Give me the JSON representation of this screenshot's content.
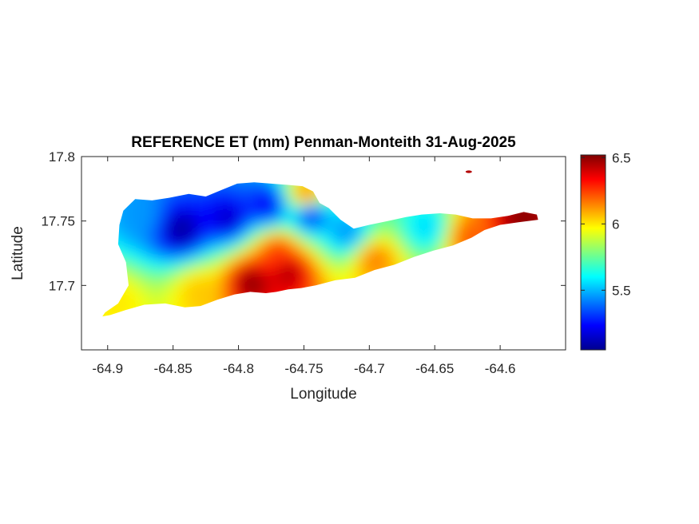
{
  "chart_data": {
    "type": "heatmap",
    "title": "REFERENCE ET (mm) Penman-Monteith 31-Aug-2025",
    "xlabel": "Longitude",
    "ylabel": "Latitude",
    "xlim": [
      -64.92,
      -64.55
    ],
    "ylim": [
      17.65,
      17.8
    ],
    "xticks": [
      -64.9,
      -64.85,
      -64.8,
      -64.75,
      -64.7,
      -64.65,
      -64.6
    ],
    "xtick_labels": [
      "-64.9",
      "-64.85",
      "-64.8",
      "-64.75",
      "-64.7",
      "-64.65",
      "-64.6"
    ],
    "yticks": [
      17.7,
      17.75,
      17.8
    ],
    "ytick_labels": [
      "17.7",
      "17.75",
      "17.8"
    ],
    "colorbar": {
      "colormap": "jet",
      "range": [
        5.05,
        6.52
      ],
      "ticks": [
        5.5,
        6,
        6.5
      ],
      "tick_labels": [
        "5.5",
        "6",
        "6.5"
      ]
    },
    "island_outline": [
      [
        -64.902,
        17.679
      ],
      [
        -64.892,
        17.686
      ],
      [
        -64.884,
        17.7
      ],
      [
        -64.886,
        17.718
      ],
      [
        -64.892,
        17.732
      ],
      [
        -64.891,
        17.747
      ],
      [
        -64.888,
        17.758
      ],
      [
        -64.879,
        17.767
      ],
      [
        -64.866,
        17.766
      ],
      [
        -64.853,
        17.768
      ],
      [
        -64.838,
        17.771
      ],
      [
        -64.825,
        17.769
      ],
      [
        -64.813,
        17.774
      ],
      [
        -64.801,
        17.779
      ],
      [
        -64.788,
        17.78
      ],
      [
        -64.775,
        17.779
      ],
      [
        -64.762,
        17.778
      ],
      [
        -64.751,
        17.777
      ],
      [
        -64.743,
        17.773
      ],
      [
        -64.738,
        17.764
      ],
      [
        -64.731,
        17.76
      ],
      [
        -64.722,
        17.751
      ],
      [
        -64.712,
        17.744
      ],
      [
        -64.7,
        17.747
      ],
      [
        -64.686,
        17.75
      ],
      [
        -64.672,
        17.753
      ],
      [
        -64.66,
        17.755
      ],
      [
        -64.646,
        17.756
      ],
      [
        -64.634,
        17.755
      ],
      [
        -64.621,
        17.752
      ],
      [
        -64.607,
        17.752
      ],
      [
        -64.594,
        17.754
      ],
      [
        -64.582,
        17.757
      ],
      [
        -64.572,
        17.755
      ],
      [
        -64.571,
        17.751
      ],
      [
        -64.586,
        17.749
      ],
      [
        -64.6,
        17.747
      ],
      [
        -64.612,
        17.743
      ],
      [
        -64.622,
        17.737
      ],
      [
        -64.636,
        17.731
      ],
      [
        -64.651,
        17.727
      ],
      [
        -64.666,
        17.722
      ],
      [
        -64.681,
        17.716
      ],
      [
        -64.696,
        17.712
      ],
      [
        -64.711,
        17.706
      ],
      [
        -64.726,
        17.704
      ],
      [
        -64.741,
        17.7
      ],
      [
        -64.752,
        17.698
      ],
      [
        -64.762,
        17.697
      ],
      [
        -64.771,
        17.695
      ],
      [
        -64.779,
        17.694
      ],
      [
        -64.791,
        17.695
      ],
      [
        -64.803,
        17.693
      ],
      [
        -64.816,
        17.689
      ],
      [
        -64.829,
        17.684
      ],
      [
        -64.841,
        17.683
      ],
      [
        -64.856,
        17.686
      ],
      [
        -64.872,
        17.685
      ],
      [
        -64.886,
        17.681
      ],
      [
        -64.898,
        17.677
      ],
      [
        -64.904,
        17.676
      ]
    ],
    "et_field_mm": {
      "background": 5.85,
      "centers": [
        {
          "lon": -64.844,
          "lat": 17.743,
          "value": 5.08
        },
        {
          "lon": -64.808,
          "lat": 17.752,
          "value": 5.15
        },
        {
          "lon": -64.778,
          "lat": 17.762,
          "value": 5.22
        },
        {
          "lon": -64.745,
          "lat": 17.755,
          "value": 5.3
        },
        {
          "lon": -64.717,
          "lat": 17.741,
          "value": 5.45
        },
        {
          "lon": -64.874,
          "lat": 17.754,
          "value": 5.45
        },
        {
          "lon": -64.656,
          "lat": 17.745,
          "value": 5.55
        },
        {
          "lon": -64.79,
          "lat": 17.702,
          "value": 6.5
        },
        {
          "lon": -64.762,
          "lat": 17.71,
          "value": 6.45
        },
        {
          "lon": -64.77,
          "lat": 17.726,
          "value": 6.25
        },
        {
          "lon": -64.83,
          "lat": 17.695,
          "value": 6.05
        },
        {
          "lon": -64.696,
          "lat": 17.72,
          "value": 6.15
        },
        {
          "lon": -64.624,
          "lat": 17.737,
          "value": 6.2
        },
        {
          "lon": -64.583,
          "lat": 17.752,
          "value": 6.5
        },
        {
          "lon": -64.893,
          "lat": 17.687,
          "value": 6.0
        },
        {
          "lon": -64.748,
          "lat": 17.77,
          "value": 6.15
        }
      ]
    }
  }
}
